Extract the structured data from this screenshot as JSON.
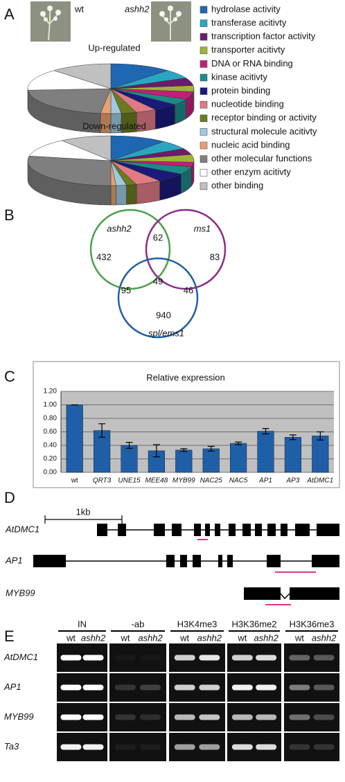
{
  "panel_labels": [
    "A",
    "B",
    "C",
    "D",
    "E"
  ],
  "panel_a": {
    "genotypes": [
      "wt",
      "ashh2"
    ]
  },
  "chart_data": [
    {
      "type": "pie",
      "categories": [
        "hydrolase activity",
        "transferase acitivty",
        "transcription factor activity",
        "transporter acitivty",
        "DNA or RNA binding",
        "kinase acitivty",
        "protein binding",
        "nucleotide binding",
        "receptor binding or activity",
        "structural molecule acitivty",
        "nucleic acid binding",
        "other molecular functions",
        "other enzym acitivty",
        "other binding"
      ],
      "colors": [
        "#1f67b1",
        "#2aa6c0",
        "#6b1c6e",
        "#9cb43a",
        "#c21f7a",
        "#1d8a8a",
        "#1a1a7a",
        "#e07a84",
        "#6b7a1e",
        "#9ecae1",
        "#e8a070",
        "#7f7f7f",
        "#ffffff",
        "#c0c0c0"
      ],
      "series": [
        {
          "name": "Up-regulated",
          "values": [
            12,
            6,
            5,
            4,
            5,
            4,
            5,
            4,
            3,
            2,
            2,
            22,
            14,
            12
          ]
        },
        {
          "name": "Down-regulated",
          "values": [
            11,
            6,
            4,
            5,
            3,
            5,
            6,
            5,
            2,
            2,
            1,
            28,
            12,
            10
          ]
        }
      ]
    },
    {
      "type": "bar",
      "title": "Relative expression",
      "categories": [
        "wt",
        "QRT3",
        "UNE15",
        "MEE48",
        "MYB99",
        "NAC25",
        "NAC5",
        "AP1",
        "AP3",
        "AtDMC1"
      ],
      "values": [
        1.0,
        0.62,
        0.4,
        0.32,
        0.33,
        0.35,
        0.43,
        0.61,
        0.52,
        0.54
      ],
      "errors": [
        0,
        0.1,
        0.045,
        0.09,
        0.02,
        0.035,
        0.02,
        0.04,
        0.035,
        0.06
      ],
      "color": "#1f5fa8",
      "ylim": [
        0,
        1.2
      ],
      "yticks": [
        {
          "value": 0,
          "label": "0.00"
        },
        {
          "value": 0.2,
          "label": "0.20"
        },
        {
          "value": 0.4,
          "label": "0.40"
        },
        {
          "value": 0.6,
          "label": "0.60"
        },
        {
          "value": 0.8,
          "label": "0.80"
        },
        {
          "value": 1.0,
          "label": "1.00"
        },
        {
          "value": 1.2,
          "label": "1.20"
        }
      ],
      "grid": true
    }
  ],
  "venn": {
    "sets": [
      {
        "label": "ashh2",
        "color": "#4aa04a"
      },
      {
        "label": "ms1",
        "color": "#8b2a8b"
      },
      {
        "label": "spl/ems1",
        "color": "#2060a0"
      }
    ],
    "regions": {
      "ashh2": 432,
      "ms1": 83,
      "spl_ems1": 940,
      "ashh2_ms1": 62,
      "ashh2_spl_ems1": 95,
      "ms1_spl_ems1": 46,
      "all": 49
    }
  },
  "gene_models": {
    "scale": "1kb",
    "genes": [
      "AtDMC1",
      "AP1",
      "MYB99"
    ]
  },
  "chip": {
    "groups": [
      "IN",
      "-ab",
      "H3K4me3",
      "H3K36me2",
      "H3K36me3"
    ],
    "lanes": [
      "wt",
      "ashh2"
    ],
    "genes": [
      "AtDMC1",
      "AP1",
      "MYB99",
      "Ta3"
    ]
  }
}
